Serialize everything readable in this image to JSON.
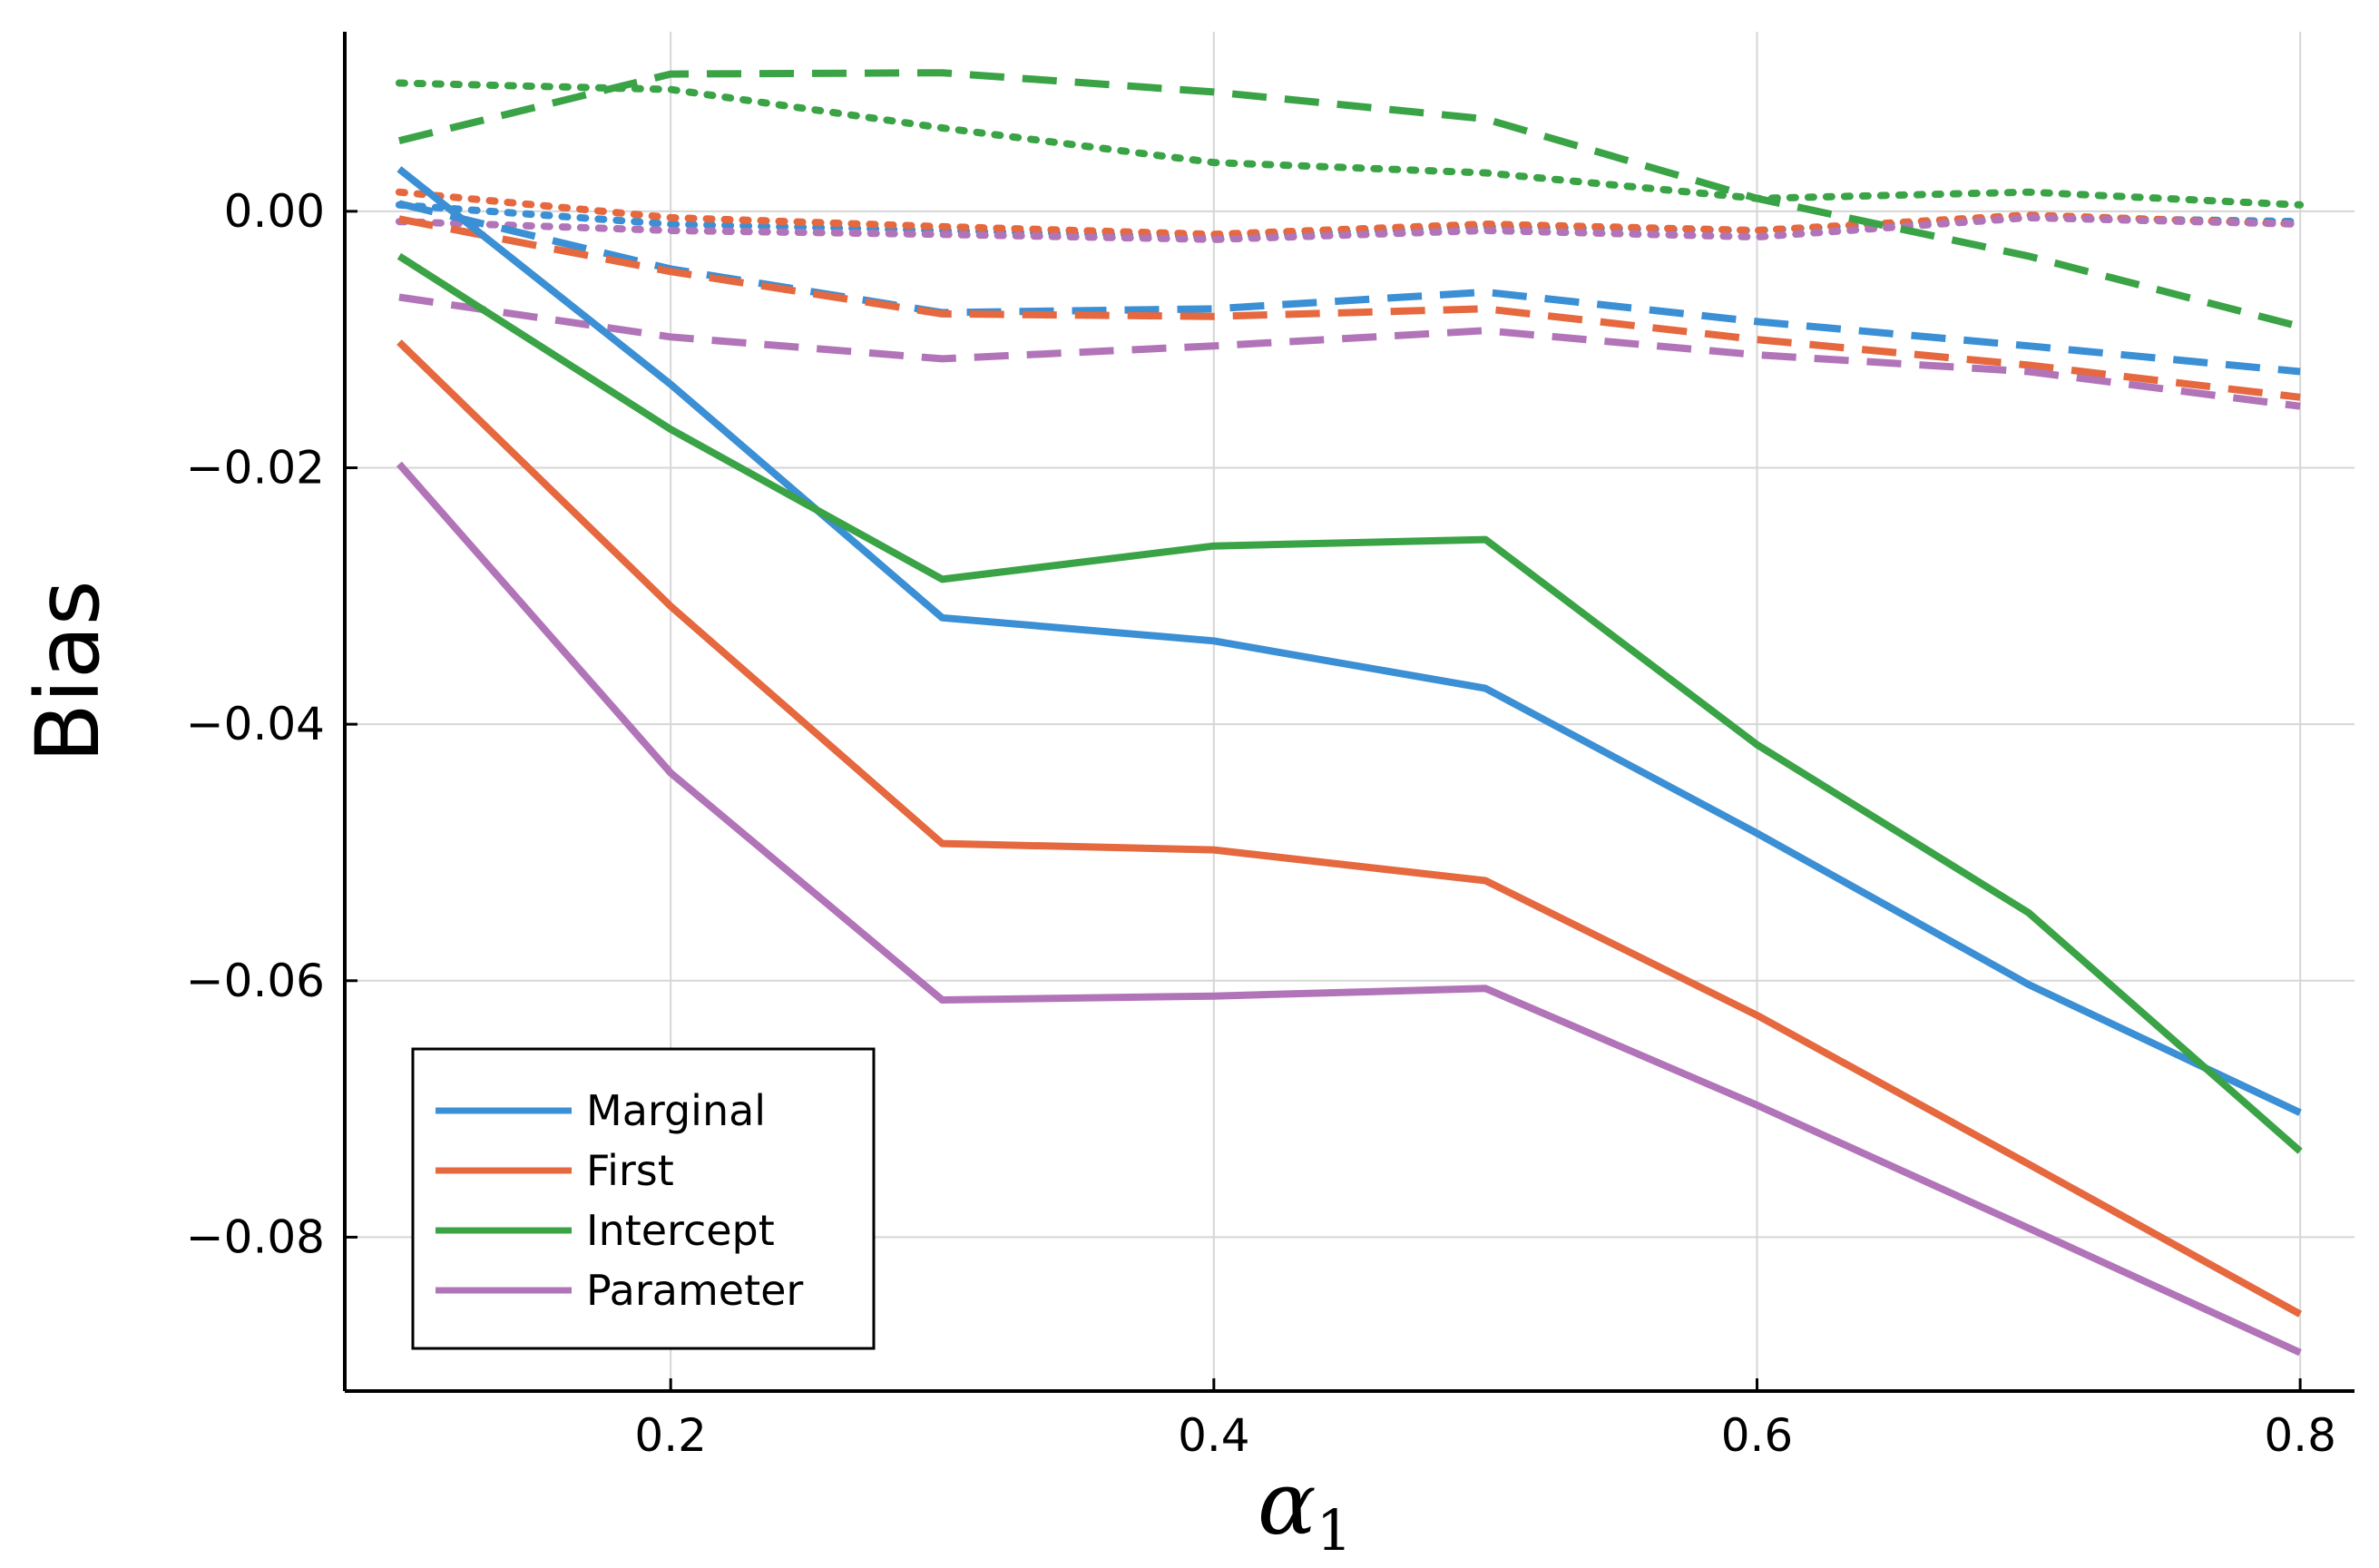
{
  "chart_data": {
    "type": "line",
    "title": "",
    "xlabel": "α",
    "xlabel_subscript": "1",
    "ylabel": "Bias",
    "xlim": [
      0.08,
      0.82
    ],
    "ylim": [
      -0.092,
      0.014
    ],
    "x": [
      0.1,
      0.2,
      0.3,
      0.4,
      0.5,
      0.6,
      0.7,
      0.8
    ],
    "xticks": [
      0.2,
      0.4,
      0.6,
      0.8
    ],
    "xtick_labels": [
      "0.2",
      "0.4",
      "0.6",
      "0.8"
    ],
    "yticks": [
      0.0,
      -0.02,
      -0.04,
      -0.06,
      -0.08
    ],
    "ytick_labels": [
      "0.00",
      "−0.02",
      "−0.04",
      "−0.06",
      "−0.08"
    ],
    "grid": true,
    "legend_position": "bottom-left",
    "legend": [
      {
        "name": "Marginal",
        "color": "#3b8fd4"
      },
      {
        "name": "First",
        "color": "#e5683f"
      },
      {
        "name": "Intercept",
        "color": "#3aa346"
      },
      {
        "name": "Parameter",
        "color": "#b274b8"
      }
    ],
    "series": [
      {
        "name": "Marginal",
        "style": "solid",
        "color": "#3b8fd4",
        "values": [
          0.0033,
          -0.0135,
          -0.0317,
          -0.0335,
          -0.0372,
          -0.0485,
          -0.0603,
          -0.0703
        ]
      },
      {
        "name": "First",
        "style": "solid",
        "color": "#e5683f",
        "values": [
          -0.0102,
          -0.0308,
          -0.0493,
          -0.0498,
          -0.0522,
          -0.0627,
          -0.0743,
          -0.086
        ]
      },
      {
        "name": "Intercept",
        "style": "solid",
        "color": "#3aa346",
        "values": [
          -0.0035,
          -0.017,
          -0.0287,
          -0.0261,
          -0.0256,
          -0.0416,
          -0.0547,
          -0.0733
        ]
      },
      {
        "name": "Parameter",
        "style": "solid",
        "color": "#b274b8",
        "values": [
          -0.0197,
          -0.0438,
          -0.0615,
          -0.0612,
          -0.0606,
          -0.0697,
          -0.0793,
          -0.089
        ]
      },
      {
        "name": "Marginal",
        "style": "dash",
        "color": "#3b8fd4",
        "values": [
          0.0006,
          -0.0045,
          -0.0079,
          -0.0076,
          -0.0063,
          -0.0086,
          -0.0105,
          -0.0125
        ]
      },
      {
        "name": "First",
        "style": "dash",
        "color": "#e5683f",
        "values": [
          -0.0006,
          -0.0047,
          -0.008,
          -0.0082,
          -0.0076,
          -0.01,
          -0.012,
          -0.0145
        ]
      },
      {
        "name": "Intercept",
        "style": "dash",
        "color": "#3aa346",
        "values": [
          0.0055,
          0.0107,
          0.0108,
          0.0093,
          0.0072,
          0.001,
          -0.0035,
          -0.009
        ]
      },
      {
        "name": "Parameter",
        "style": "dash",
        "color": "#b274b8",
        "values": [
          -0.0067,
          -0.0098,
          -0.0115,
          -0.0105,
          -0.0093,
          -0.0112,
          -0.0125,
          -0.0152
        ]
      },
      {
        "name": "Marginal",
        "style": "dot",
        "color": "#3b8fd4",
        "values": [
          0.0005,
          -0.001,
          -0.0015,
          -0.002,
          -0.0012,
          -0.0015,
          -0.0005,
          -0.0008
        ]
      },
      {
        "name": "First",
        "style": "dot",
        "color": "#e5683f",
        "values": [
          0.0015,
          -0.0005,
          -0.0012,
          -0.0018,
          -0.001,
          -0.0015,
          -0.0003,
          -0.001
        ]
      },
      {
        "name": "Intercept",
        "style": "dot",
        "color": "#3aa346",
        "values": [
          0.01,
          0.0095,
          0.0065,
          0.0038,
          0.003,
          0.001,
          0.0015,
          0.0005
        ]
      },
      {
        "name": "Parameter",
        "style": "dot",
        "color": "#b274b8",
        "values": [
          -0.0008,
          -0.0015,
          -0.0018,
          -0.0022,
          -0.0015,
          -0.002,
          -0.0005,
          -0.001
        ]
      }
    ]
  }
}
